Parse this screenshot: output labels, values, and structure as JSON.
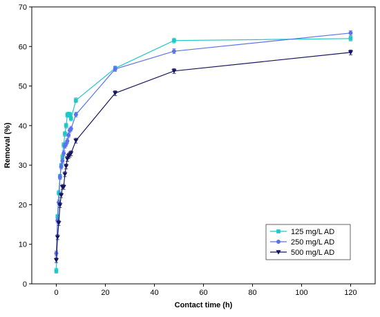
{
  "chart_data": {
    "type": "line",
    "xlabel": "Contact time (h)",
    "ylabel": "Removal (%)",
    "xlim": [
      -10,
      130
    ],
    "ylim": [
      0,
      70
    ],
    "xticks": [
      0,
      20,
      40,
      60,
      80,
      100,
      120
    ],
    "yticks": [
      0,
      10,
      20,
      30,
      40,
      50,
      60,
      70
    ],
    "grid": false,
    "legend_position": "bottom-right",
    "series": [
      {
        "name": "125 mg/L AD",
        "color": "#1fc7c7",
        "marker": "square",
        "x": [
          0,
          0.5,
          1,
          1.5,
          2,
          2.5,
          3,
          3.5,
          4,
          4.5,
          5,
          5.5,
          6,
          8,
          24,
          48,
          120
        ],
        "y": [
          3.3,
          17.0,
          23.0,
          27.1,
          29.9,
          32.1,
          35.1,
          37.9,
          40.0,
          42.7,
          42.8,
          42.8,
          41.8,
          46.4,
          54.5,
          61.5,
          62.0
        ]
      },
      {
        "name": "250 mg/L AD",
        "color": "#5b72ea",
        "marker": "circle",
        "x": [
          0,
          0.5,
          1,
          1.5,
          2,
          2.5,
          3,
          3.5,
          4,
          4.5,
          5,
          5.5,
          6,
          8,
          24,
          48,
          120
        ],
        "y": [
          7.7,
          16.0,
          20.6,
          27.0,
          29.6,
          31.1,
          33.0,
          34.9,
          35.4,
          36.1,
          37.6,
          38.8,
          39.2,
          42.8,
          54.3,
          58.8,
          63.4
        ]
      },
      {
        "name": "500 mg/L AD",
        "color": "#14145e",
        "marker": "triangle-down",
        "x": [
          0,
          0.5,
          1,
          1.5,
          2,
          2.5,
          3,
          3.5,
          4,
          4.5,
          5,
          5.5,
          6,
          8,
          24,
          48,
          120
        ],
        "y": [
          6.0,
          11.8,
          15.4,
          19.9,
          22.4,
          24.5,
          24.5,
          27.7,
          29.7,
          31.6,
          32.3,
          32.6,
          33.0,
          36.2,
          48.2,
          53.8,
          58.5
        ]
      }
    ]
  }
}
